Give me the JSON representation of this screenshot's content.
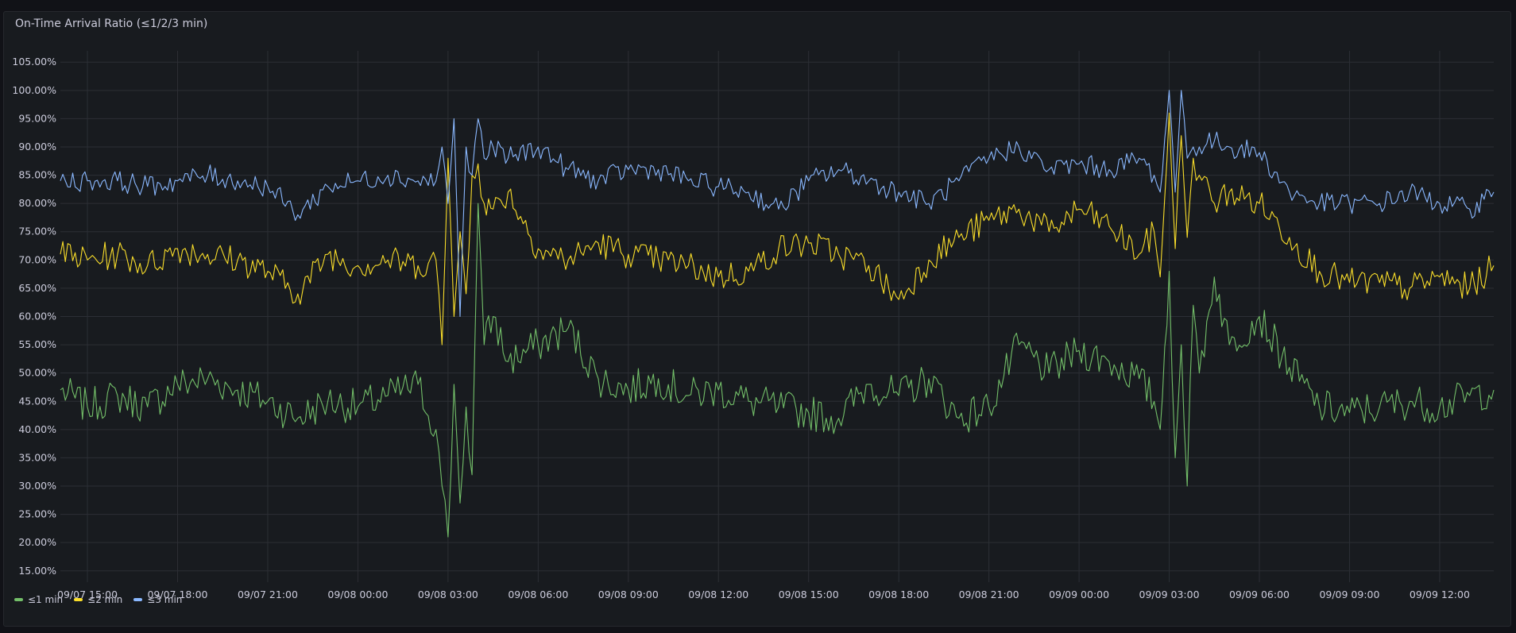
{
  "panel": {
    "title": "On-Time Arrival Ratio (≤1/2/3 min)"
  },
  "chart_data": {
    "type": "line",
    "title": "On-Time Arrival Ratio (≤1/2/3 min)",
    "xlabel": "",
    "ylabel": "",
    "x_ticks": [
      "09/07 15:00",
      "09/07 18:00",
      "09/07 21:00",
      "09/08 00:00",
      "09/08 03:00",
      "09/08 06:00",
      "09/08 09:00",
      "09/08 12:00",
      "09/08 15:00",
      "09/08 18:00",
      "09/08 21:00",
      "09/09 00:00",
      "09/09 03:00",
      "09/09 06:00",
      "09/09 09:00",
      "09/09 12:00"
    ],
    "y_ticks": [
      "15.00%",
      "20.00%",
      "25.00%",
      "30.00%",
      "35.00%",
      "40.00%",
      "45.00%",
      "50.00%",
      "55.00%",
      "60.00%",
      "65.00%",
      "70.00%",
      "75.00%",
      "80.00%",
      "85.00%",
      "90.00%",
      "95.00%",
      "100.00%",
      "105.00%"
    ],
    "ylim": [
      13,
      107
    ],
    "xlim_hours": [
      -0.9,
      46.8
    ],
    "x_hours": [
      -0.9,
      0,
      1,
      2,
      3,
      4,
      5,
      6,
      7,
      8,
      9,
      10,
      11,
      11.6,
      11.8,
      12,
      12.2,
      12.4,
      12.6,
      12.8,
      13,
      13.2,
      13.5,
      14,
      15,
      16,
      17,
      18,
      19,
      20,
      21,
      22,
      23,
      24,
      25,
      26,
      27,
      28,
      29,
      30,
      31,
      32,
      33,
      34,
      35,
      35.5,
      35.7,
      36,
      36.2,
      36.4,
      36.6,
      36.8,
      37,
      37.5,
      38,
      39,
      40,
      41,
      42,
      43,
      44,
      45,
      46,
      46.8
    ],
    "series": [
      {
        "name": "≤1 min",
        "color": "#73bf69",
        "values": [
          47,
          44,
          46,
          44,
          48,
          49,
          47,
          45,
          42,
          45,
          44,
          46,
          48,
          40,
          30,
          21,
          48,
          27,
          44,
          32,
          80,
          55,
          60,
          52,
          55,
          58,
          49,
          47,
          49,
          46,
          47,
          45,
          44,
          43,
          42,
          48,
          46,
          49,
          42,
          44,
          55,
          50,
          54,
          52,
          49,
          45,
          40,
          68,
          35,
          55,
          30,
          62,
          50,
          67,
          55,
          60,
          51,
          44,
          43,
          44,
          45,
          44,
          46,
          47
        ]
      },
      {
        "name": "≤2 min",
        "color": "#fade2a",
        "values": [
          71,
          70,
          71,
          69,
          72,
          71,
          70,
          68,
          64,
          71,
          69,
          70,
          69,
          70,
          55,
          88,
          60,
          75,
          64,
          85,
          87,
          80,
          79,
          82,
          72,
          70,
          73,
          71,
          70,
          69,
          67,
          68,
          72,
          73,
          71,
          69,
          63,
          70,
          74,
          77,
          79,
          75,
          79,
          76,
          71,
          75,
          67,
          96,
          72,
          92,
          74,
          88,
          85,
          80,
          82,
          80,
          74,
          68,
          66,
          66,
          65,
          67,
          65,
          69
        ]
      },
      {
        "name": "≤3 min",
        "color": "#8ab8ff",
        "values": [
          84,
          84,
          84,
          83,
          84,
          85,
          84,
          83,
          78,
          83,
          84,
          85,
          84,
          84,
          90,
          80,
          95,
          60,
          90,
          85,
          95,
          88,
          90,
          88,
          90,
          86,
          84,
          86,
          86,
          84,
          83,
          82,
          79,
          84,
          86,
          84,
          82,
          80,
          84,
          88,
          90,
          86,
          87,
          86,
          88,
          85,
          82,
          100,
          82,
          100,
          88,
          90,
          90,
          91,
          90,
          89,
          82,
          80,
          80,
          80,
          82,
          80,
          79,
          82
        ]
      }
    ],
    "legend": [
      "≤1 min",
      "≤2 min",
      "≤3 min"
    ],
    "legend_position": "bottom-left",
    "grid": true
  }
}
